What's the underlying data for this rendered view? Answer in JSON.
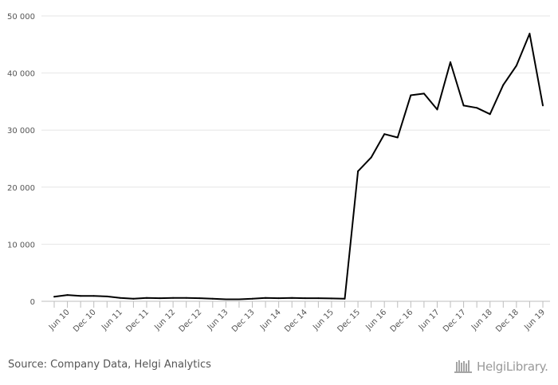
{
  "chart_data": {
    "type": "line",
    "title": "",
    "xlabel": "",
    "ylabel": "",
    "ylim": [
      0,
      50000
    ],
    "yticks": [
      "0",
      "10 000",
      "20 000",
      "30 000",
      "40 000",
      "50 000"
    ],
    "grid": true,
    "x_labels": [
      "Jun 10",
      "Dec 10",
      "Jun 11",
      "Dec 11",
      "Jun 12",
      "Dec 12",
      "Jun 13",
      "Dec 13",
      "Jun 14",
      "Dec 14",
      "Jun 15",
      "Dec 15",
      "Jun 16",
      "Dec 16",
      "Jun 17",
      "Dec 17",
      "Jun 18",
      "Dec 18",
      "Jun 19"
    ],
    "x_start": "2010-03",
    "x_end": "2019-09",
    "x_step_months": 3,
    "values": [
      800,
      1100,
      950,
      950,
      850,
      600,
      450,
      600,
      550,
      600,
      600,
      550,
      450,
      350,
      350,
      450,
      600,
      550,
      600,
      550,
      550,
      500,
      450,
      22800,
      25200,
      29300,
      28700,
      36100,
      36400,
      33600,
      41900,
      34300,
      33900,
      32800,
      37900,
      41300,
      46900,
      34300
    ],
    "series_color": "#000000"
  },
  "footer": {
    "source": "Source: Company Data, Helgi Analytics",
    "logo_text": "HelgiLibrary."
  }
}
